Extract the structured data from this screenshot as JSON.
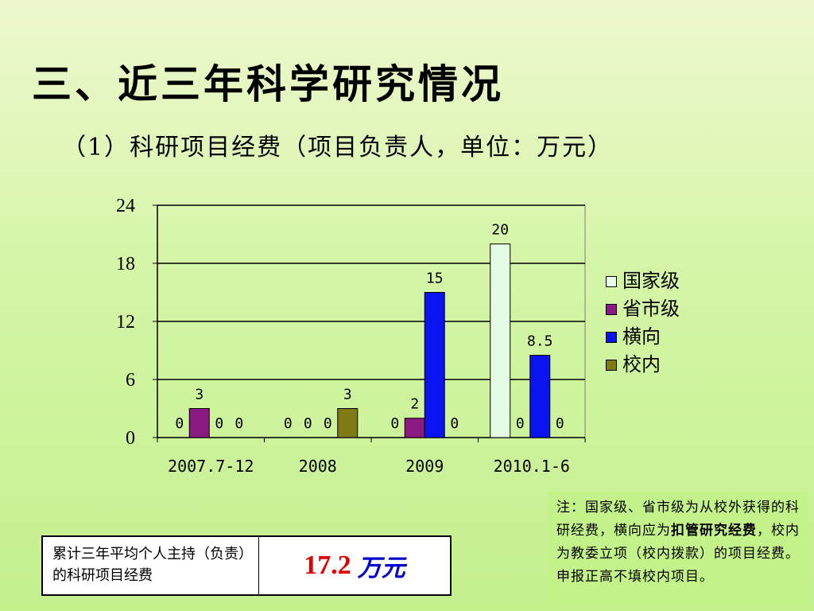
{
  "slide": {
    "title": "三、近三年科学研究情况",
    "subtitle": "（1）科研项目经费（项目负责人，单位：万元）"
  },
  "chart_data": {
    "type": "bar",
    "categories": [
      "2007.7-12",
      "2008",
      "2009",
      "2010.1-6"
    ],
    "series": [
      {
        "name": "国家级",
        "color": "#e6fbe4",
        "values": [
          0,
          0,
          0,
          20
        ]
      },
      {
        "name": "省市级",
        "color": "#8a1a82",
        "values": [
          3,
          0,
          2,
          0
        ]
      },
      {
        "name": "横向",
        "color": "#0a14f0",
        "values": [
          0,
          0,
          15,
          8.5
        ]
      },
      {
        "name": "校内",
        "color": "#807a14",
        "values": [
          0,
          3,
          0,
          0
        ]
      }
    ],
    "data_labels": [
      [
        "0",
        "3",
        "0",
        "0"
      ],
      [
        "0",
        "0",
        "0",
        "3"
      ],
      [
        "0",
        "2",
        "15",
        "0"
      ],
      [
        "20",
        "0",
        "8.5",
        "0"
      ]
    ],
    "ylim": [
      0,
      24
    ],
    "yticks": [
      0,
      6,
      12,
      18,
      24
    ],
    "grid": true,
    "legend": "right"
  },
  "summary": {
    "label": "累计三年平均个人主持（负责）的科研项目经费",
    "value": "17.2",
    "unit": "万元"
  },
  "note": {
    "part1": "注：国家级、省市级为从校外获得的科研经费，横向应为",
    "bold": "扣管研究经费",
    "part2": "，校内为教委立项（校内拨款）的项目经费。申报正高不填校内项目。"
  }
}
